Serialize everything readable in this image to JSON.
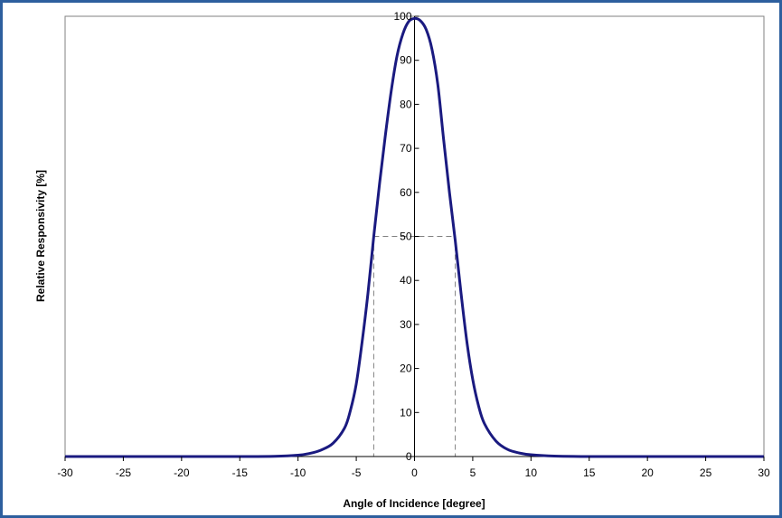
{
  "chart_data": {
    "type": "line",
    "title": "",
    "xlabel": "Angle of Incidence [degree]",
    "ylabel": "Relative Responsivity [%]",
    "xlim": [
      -30,
      30
    ],
    "ylim": [
      0,
      100
    ],
    "x_ticks": [
      -30,
      -25,
      -20,
      -15,
      -10,
      -5,
      0,
      5,
      10,
      15,
      20,
      25,
      30
    ],
    "y_ticks": [
      0,
      10,
      20,
      30,
      40,
      50,
      60,
      70,
      80,
      90,
      100
    ],
    "grid": false,
    "legend": "none",
    "colors": {
      "line": "#1a1a80",
      "guides": "#808080",
      "axis": "#000000",
      "frame": "#2d5f9e"
    },
    "series": [
      {
        "x": [
          -30,
          -20,
          -15,
          -12,
          -10,
          -9,
          -8,
          -7,
          -6,
          -5.5,
          -5,
          -4.5,
          -4,
          -3.5,
          -3,
          -2.5,
          -2,
          -1.5,
          -1,
          -0.5,
          0,
          0.5,
          1,
          1.5,
          2,
          2.5,
          3,
          3.5,
          4,
          4.5,
          5,
          5.5,
          6,
          7,
          8,
          9,
          10,
          12,
          15,
          20,
          30
        ],
        "values": [
          0,
          0,
          0,
          0.05,
          0.3,
          0.7,
          1.5,
          3,
          6.5,
          10.5,
          16.5,
          26,
          37,
          50,
          62,
          73,
          83,
          91,
          96,
          98.8,
          99.5,
          99,
          97,
          92.5,
          84.5,
          72,
          60,
          49,
          37,
          26,
          17.5,
          11.5,
          7.5,
          3.5,
          1.6,
          0.8,
          0.4,
          0.1,
          0,
          0,
          0
        ]
      }
    ],
    "guide_lines": {
      "y": 50,
      "x_left": -3.5,
      "x_right": 3.5
    }
  }
}
